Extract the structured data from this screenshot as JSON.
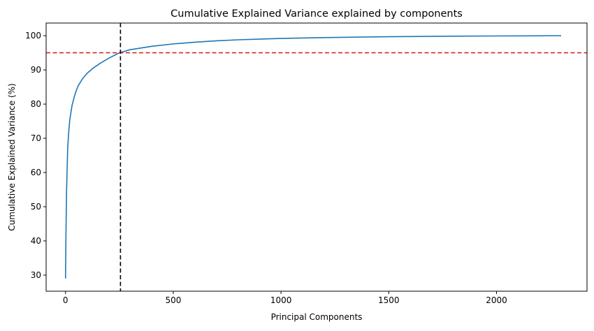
{
  "chart_data": {
    "type": "line",
    "title": "Cumulative Explained Variance explained by components",
    "xlabel": "Principal Components",
    "ylabel": "Cumulative Explained Variance (%)",
    "xlim": [
      -90,
      2420
    ],
    "ylim": [
      25.3,
      103.7
    ],
    "xticks": [
      0,
      500,
      1000,
      1500,
      2000
    ],
    "yticks": [
      30,
      40,
      50,
      60,
      70,
      80,
      90,
      100
    ],
    "grid": false,
    "series": [
      {
        "color": "#1f77b4",
        "x": [
          0,
          2,
          5,
          10,
          15,
          20,
          30,
          40,
          50,
          60,
          80,
          100,
          130,
          160,
          200,
          250,
          300,
          400,
          500,
          600,
          700,
          800,
          1000,
          1200,
          1500,
          1800,
          2000,
          2300
        ],
        "y": [
          29.0,
          42.0,
          55.0,
          67.0,
          72.0,
          75.5,
          79.5,
          82.0,
          84.0,
          85.5,
          87.5,
          89.0,
          90.6,
          91.9,
          93.4,
          95.0,
          95.9,
          96.9,
          97.6,
          98.1,
          98.5,
          98.8,
          99.2,
          99.45,
          99.7,
          99.85,
          99.92,
          100.0
        ]
      }
    ],
    "reference_lines": [
      {
        "orientation": "horizontal",
        "value": 95,
        "color": "#d62728",
        "style": "dashed"
      },
      {
        "orientation": "vertical",
        "value": 255,
        "color": "#000000",
        "style": "dashed"
      }
    ]
  }
}
